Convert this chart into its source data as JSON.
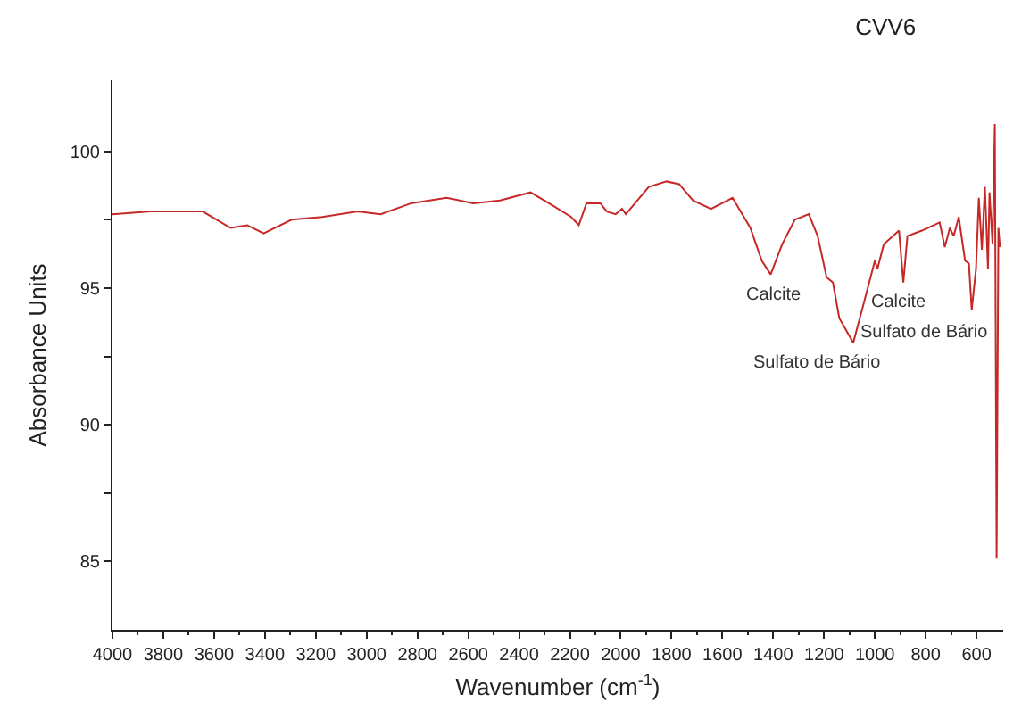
{
  "chart_data": {
    "type": "line",
    "title": "CVV6",
    "xlabel": "Wavenumber (cm$^{-1}$)",
    "ylabel": "Absorbance Units",
    "annotations": [
      {
        "text": "Calcite",
        "x": 1410,
        "y": 95.5
      },
      {
        "text": "Sulfato de Bário",
        "x": 1085,
        "y": 93.0
      },
      {
        "text": "Calcite",
        "x": 888,
        "y": 95.2
      },
      {
        "text": "Sulfato de Bário",
        "x": 619,
        "y": 94.2
      }
    ],
    "x": [
      4000,
      3850,
      3700,
      3645,
      3535,
      3470,
      3405,
      3295,
      3175,
      3035,
      2945,
      2825,
      2685,
      2580,
      2475,
      2355,
      2265,
      2195,
      2165,
      2135,
      2080,
      2055,
      2020,
      1995,
      1980,
      1935,
      1890,
      1820,
      1770,
      1715,
      1645,
      1560,
      1490,
      1445,
      1410,
      1365,
      1315,
      1260,
      1225,
      1190,
      1165,
      1140,
      1085,
      1045,
      1000,
      990,
      965,
      905,
      888,
      872,
      815,
      745,
      725,
      705,
      690,
      670,
      645,
      630,
      619,
      602,
      591,
      579,
      567,
      555,
      549,
      537,
      528,
      521,
      514,
      508
    ],
    "series": [
      {
        "color": "#c62828",
        "values": [
          97.7,
          97.8,
          97.8,
          97.8,
          97.2,
          97.3,
          97.0,
          97.5,
          97.6,
          97.8,
          97.7,
          98.1,
          98.3,
          98.1,
          98.2,
          98.5,
          98.0,
          97.6,
          97.3,
          98.1,
          98.1,
          97.8,
          97.7,
          97.9,
          97.7,
          98.2,
          98.7,
          98.9,
          98.8,
          98.2,
          97.9,
          98.3,
          97.2,
          96.0,
          95.5,
          96.6,
          97.5,
          97.7,
          96.9,
          95.4,
          95.2,
          93.9,
          93.0,
          94.4,
          96.0,
          95.7,
          96.6,
          97.1,
          95.2,
          96.9,
          97.1,
          97.4,
          96.5,
          97.2,
          96.9,
          97.6,
          96.0,
          95.9,
          94.2,
          95.7,
          98.3,
          96.4,
          98.7,
          95.7,
          98.5,
          96.6,
          101.0,
          85.1,
          97.2,
          96.5
        ]
      }
    ],
    "xlim": [
      4000,
      495
    ],
    "xticks": [
      4000,
      3800,
      3600,
      3400,
      3200,
      3000,
      2800,
      2600,
      2400,
      2200,
      2000,
      1800,
      1600,
      1400,
      1200,
      1000,
      800,
      600
    ],
    "ylim": [
      82.5,
      102.6
    ],
    "yticks": [
      85,
      90,
      95,
      100
    ],
    "marker": "none",
    "line_style": "solid"
  }
}
